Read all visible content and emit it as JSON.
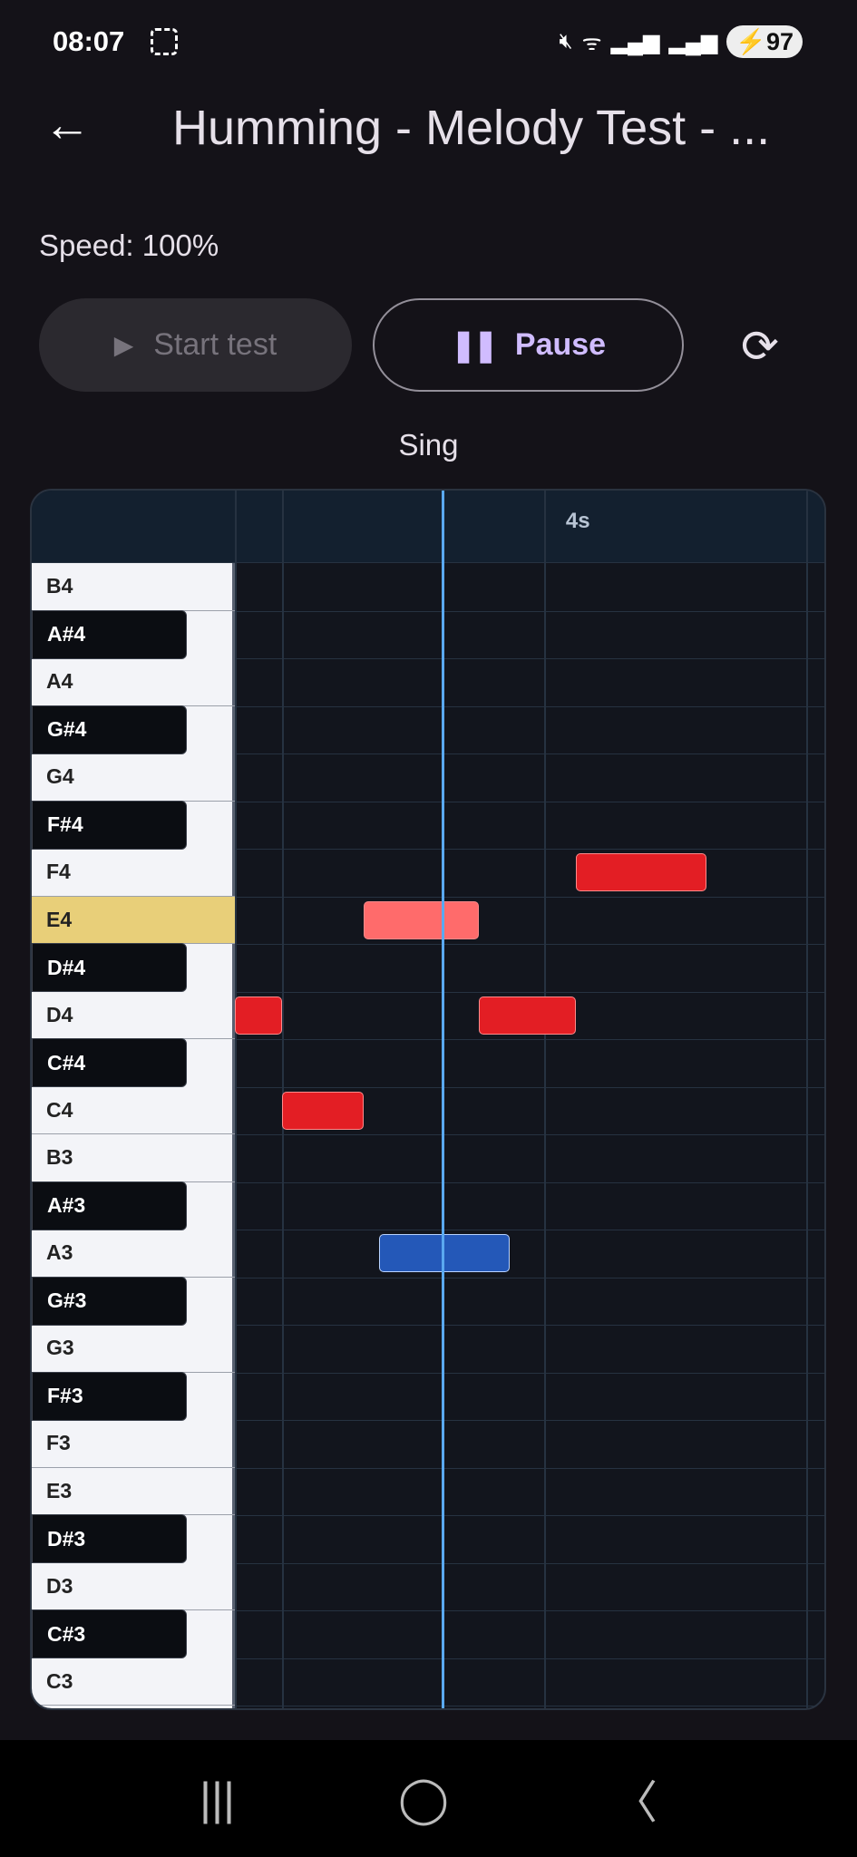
{
  "status_bar": {
    "time": "08:07",
    "battery": "97",
    "icons": [
      "screenshot-icon",
      "mute-icon",
      "wifi-icon",
      "signal-icon",
      "signal-roaming-icon",
      "battery-charging-icon"
    ]
  },
  "header": {
    "title": "Humming - Melody Test - ..."
  },
  "speed_label": "Speed: 100%",
  "controls": {
    "start_label": "Start test",
    "pause_label": "Pause",
    "start_enabled": false
  },
  "mode_label": "Sing",
  "chart_data": {
    "type": "piano-roll",
    "time_label": "4s",
    "time_range_s": [
      2.82,
      5.07
    ],
    "gridlines_s": [
      3,
      4,
      5
    ],
    "playhead_s": 3.61,
    "highlighted_key": "E4",
    "keys": [
      "B4",
      "A#4",
      "A4",
      "G#4",
      "G4",
      "F#4",
      "F4",
      "E4",
      "D#4",
      "D4",
      "C#4",
      "C4",
      "B3",
      "A#3",
      "A3",
      "G#3",
      "G3",
      "F#3",
      "F3",
      "E3",
      "D#3",
      "D3",
      "C#3",
      "C3"
    ],
    "target_notes": [
      {
        "pitch": "D4",
        "start": 2.82,
        "end": 3.0,
        "state": "upcoming"
      },
      {
        "pitch": "C4",
        "start": 3.0,
        "end": 3.31,
        "state": "upcoming"
      },
      {
        "pitch": "E4",
        "start": 3.31,
        "end": 3.75,
        "state": "active"
      },
      {
        "pitch": "D4",
        "start": 3.75,
        "end": 4.12,
        "state": "upcoming"
      },
      {
        "pitch": "F4",
        "start": 4.12,
        "end": 4.62,
        "state": "upcoming"
      }
    ],
    "sung_notes": [
      {
        "pitch": "A3",
        "start": 3.37,
        "end": 3.87
      }
    ],
    "colors": {
      "upcoming": "#e31e24",
      "active": "#ff6b6b",
      "sung": "#2458b8",
      "playhead": "#5aa9f0",
      "highlight": "#e8cf79"
    }
  }
}
